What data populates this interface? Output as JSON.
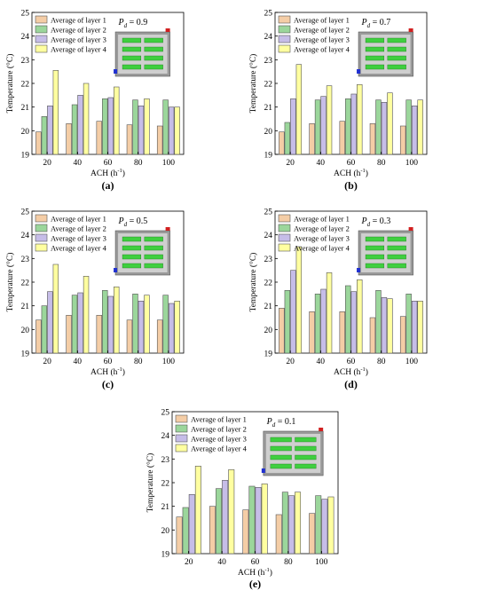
{
  "legend_labels": [
    "Average of layer 1",
    "Average of layer 2",
    "Average of layer 3",
    "Average of layer 4"
  ],
  "colors": {
    "layer1": "#f4cda6",
    "layer2": "#9bd69b",
    "layer3": "#c6bde8",
    "layer4": "#ffffa0"
  },
  "pd_prefix": "P",
  "pd_sub": "d",
  "charts": [
    {
      "type": "bar",
      "panel_label": "(a)",
      "pd_value": "= 0.9",
      "xlabel": "ACH (h",
      "xlabel_sup": "-1",
      "xlabel_end": ")",
      "ylabel": "Temperature (°C)",
      "categories": [
        "20",
        "40",
        "60",
        "80",
        "100"
      ],
      "ylim": [
        19,
        25
      ],
      "yticks": [
        "19",
        "20",
        "21",
        "22",
        "23",
        "24",
        "25"
      ],
      "series": [
        {
          "name": "Average of layer 1",
          "values": [
            19.95,
            20.3,
            20.4,
            20.25,
            20.2
          ]
        },
        {
          "name": "Average of layer 2",
          "values": [
            20.6,
            21.1,
            21.35,
            21.3,
            21.3
          ]
        },
        {
          "name": "Average of layer 3",
          "values": [
            21.05,
            21.5,
            21.4,
            21.05,
            21.0
          ]
        },
        {
          "name": "Average of layer 4",
          "values": [
            22.55,
            22.0,
            21.85,
            21.35,
            21.0
          ]
        }
      ]
    },
    {
      "type": "bar",
      "panel_label": "(b)",
      "pd_value": "= 0.7",
      "xlabel": "ACH (h",
      "xlabel_sup": "-1",
      "xlabel_end": ")",
      "ylabel": "Temperature (°C)",
      "categories": [
        "20",
        "40",
        "60",
        "80",
        "100"
      ],
      "ylim": [
        19,
        25
      ],
      "yticks": [
        "19",
        "20",
        "21",
        "22",
        "23",
        "24",
        "25"
      ],
      "series": [
        {
          "name": "Average of layer 1",
          "values": [
            19.95,
            20.3,
            20.4,
            20.3,
            20.2
          ]
        },
        {
          "name": "Average of layer 2",
          "values": [
            20.35,
            21.3,
            21.35,
            21.3,
            21.3
          ]
        },
        {
          "name": "Average of layer 3",
          "values": [
            21.35,
            21.45,
            21.55,
            21.2,
            21.05
          ]
        },
        {
          "name": "Average of layer 4",
          "values": [
            22.8,
            21.9,
            21.95,
            21.6,
            21.3
          ]
        }
      ]
    },
    {
      "type": "bar",
      "panel_label": "(c)",
      "pd_value": "= 0.5",
      "xlabel": "ACH (h",
      "xlabel_sup": "-1",
      "xlabel_end": ")",
      "ylabel": "Temperature (°C)",
      "categories": [
        "20",
        "40",
        "60",
        "80",
        "100"
      ],
      "ylim": [
        19,
        25
      ],
      "yticks": [
        "19",
        "20",
        "21",
        "22",
        "23",
        "24",
        "25"
      ],
      "series": [
        {
          "name": "Average of layer 1",
          "values": [
            20.4,
            20.6,
            20.6,
            20.4,
            20.4
          ]
        },
        {
          "name": "Average of layer 2",
          "values": [
            21.0,
            21.45,
            21.65,
            21.5,
            21.45
          ]
        },
        {
          "name": "Average of layer 3",
          "values": [
            21.6,
            21.55,
            21.4,
            21.2,
            21.1
          ]
        },
        {
          "name": "Average of layer 4",
          "values": [
            22.75,
            22.25,
            21.8,
            21.45,
            21.2
          ]
        }
      ]
    },
    {
      "type": "bar",
      "panel_label": "(d)",
      "pd_value": "= 0.3",
      "xlabel": "ACH (h",
      "xlabel_sup": "-1",
      "xlabel_end": ")",
      "ylabel": "Temperature (°C)",
      "categories": [
        "20",
        "40",
        "60",
        "80",
        "100"
      ],
      "ylim": [
        19,
        25
      ],
      "yticks": [
        "19",
        "20",
        "21",
        "22",
        "23",
        "24",
        "25"
      ],
      "series": [
        {
          "name": "Average of layer 1",
          "values": [
            20.9,
            20.75,
            20.75,
            20.5,
            20.55
          ]
        },
        {
          "name": "Average of layer 2",
          "values": [
            21.65,
            21.5,
            21.85,
            21.65,
            21.5
          ]
        },
        {
          "name": "Average of layer 3",
          "values": [
            22.5,
            21.7,
            21.6,
            21.35,
            21.2
          ]
        },
        {
          "name": "Average of layer 4",
          "values": [
            23.5,
            22.4,
            22.1,
            21.3,
            21.2
          ]
        }
      ]
    },
    {
      "type": "bar",
      "panel_label": "(e)",
      "pd_value": "= 0.1",
      "xlabel": "ACH (h",
      "xlabel_sup": "-1",
      "xlabel_end": ")",
      "ylabel": "Temperature (°C)",
      "categories": [
        "20",
        "40",
        "60",
        "80",
        "100"
      ],
      "ylim": [
        19,
        25
      ],
      "yticks": [
        "19",
        "20",
        "21",
        "22",
        "23",
        "24",
        "25"
      ],
      "series": [
        {
          "name": "Average of layer 1",
          "values": [
            20.55,
            21.0,
            20.85,
            20.65,
            20.7
          ]
        },
        {
          "name": "Average of layer 2",
          "values": [
            20.95,
            21.75,
            21.85,
            21.6,
            21.45
          ]
        },
        {
          "name": "Average of layer 3",
          "values": [
            21.5,
            22.1,
            21.8,
            21.45,
            21.3
          ]
        },
        {
          "name": "Average of layer 4",
          "values": [
            22.7,
            22.55,
            21.95,
            21.6,
            21.4
          ]
        }
      ]
    }
  ]
}
